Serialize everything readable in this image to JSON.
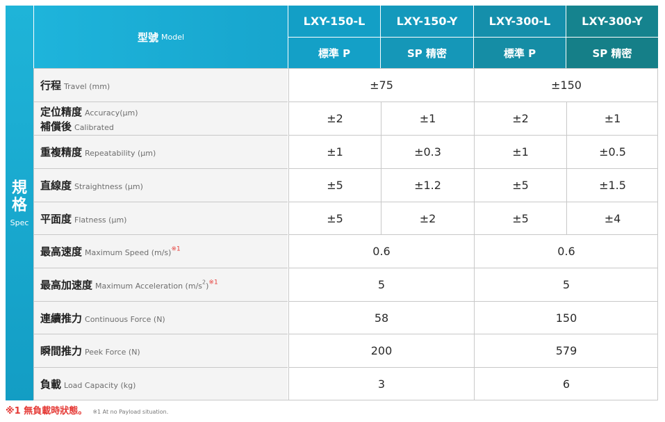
{
  "side": {
    "zh_1": "規",
    "zh_2": "格",
    "en": "Spec"
  },
  "header": {
    "model_zh": "型號",
    "model_en": "Model",
    "models": [
      "LXY-150-L",
      "LXY-150-Y",
      "LXY-300-L",
      "LXY-300-Y"
    ],
    "grades": [
      "標準 P",
      "SP 精密",
      "標準 P",
      "SP 精密"
    ]
  },
  "rows": [
    {
      "zh": "行程",
      "en": "Travel (mm)",
      "values": [
        "±75",
        "±150"
      ]
    },
    {
      "zh": "定位精度",
      "en": "Accuracy(μm)",
      "zh2": "補償後",
      "en2": "Calibrated",
      "values": [
        "±2",
        "±1",
        "±2",
        "±1"
      ]
    },
    {
      "zh": "重複精度",
      "en": "Repeatability (μm)",
      "values": [
        "±1",
        "±0.3",
        "±1",
        "±0.5"
      ]
    },
    {
      "zh": "直線度",
      "en": "Straightness (μm)",
      "values": [
        "±5",
        "±1.2",
        "±5",
        "±1.5"
      ]
    },
    {
      "zh": "平面度",
      "en": "Flatness (μm)",
      "values": [
        "±5",
        "±2",
        "±5",
        "±4"
      ]
    },
    {
      "zh": "最高速度",
      "en": "Maximum Speed  (m/s)",
      "mark": "※1",
      "values": [
        "0.6",
        "0.6"
      ]
    },
    {
      "zh": "最高加速度",
      "en": "Maximum Acceleration  (m/s",
      "sup": "2",
      "en_tail": ")",
      "mark": "※1",
      "values": [
        "5",
        "5"
      ]
    },
    {
      "zh": "連續推力",
      "en": "Continuous Force (N)",
      "values": [
        "58",
        "150"
      ]
    },
    {
      "zh": "瞬間推力",
      "en": "Peek Force (N)",
      "values": [
        "200",
        "579"
      ]
    },
    {
      "zh": "負載",
      "en": "Load Capacity (kg)",
      "values": [
        "3",
        "6"
      ]
    }
  ],
  "footnote": {
    "zh": "※1 無負載時狀態。",
    "en": "※1 At no Payload situation."
  },
  "colors": {
    "header_teal": "#1eb4db",
    "header_dark": "#15808a",
    "footnote_red": "#e53935",
    "label_bg": "#f4f4f4"
  }
}
